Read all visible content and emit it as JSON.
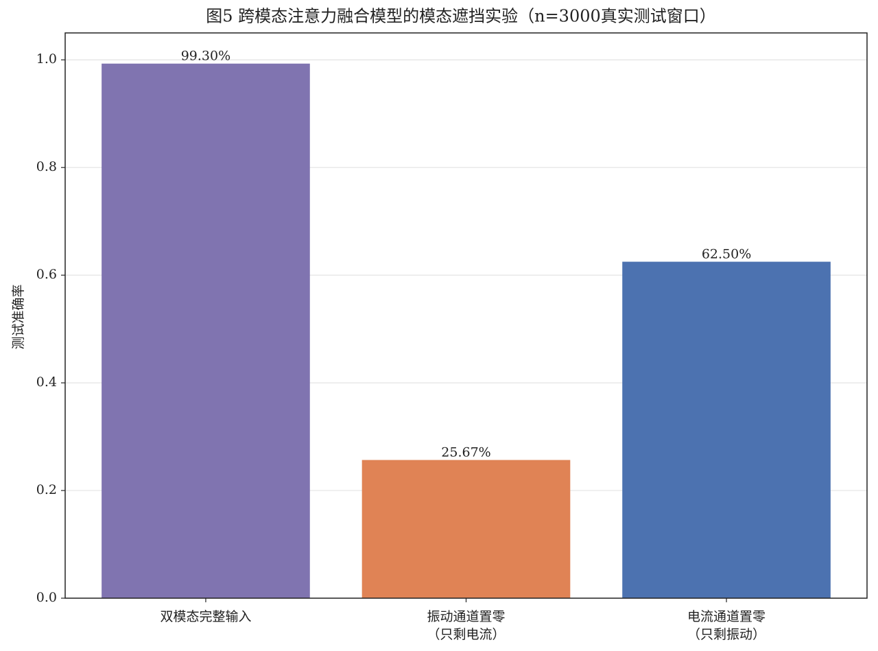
{
  "chart_data": {
    "type": "bar",
    "title": "图5 跨模态注意力融合模型的模态遮挡实验（n=3000真实测试窗口）",
    "y_label": "测试准确率",
    "categories": [
      "双模态完整输入",
      "振动通道置零\n（只剩电流）",
      "电流通道置零\n（只剩振动）"
    ],
    "values": [
      0.993,
      0.2567,
      0.625
    ],
    "value_labels": [
      "99.30%",
      "25.67%",
      "62.50%"
    ],
    "colors": [
      "#8074b0",
      "#e08355",
      "#4c72b0"
    ],
    "ylim": [
      0,
      1.05
    ],
    "yticks": [
      {
        "value": 0,
        "label": "0.0"
      },
      0.2,
      0.4,
      0.6,
      0.8,
      {
        "value": 1,
        "label": "1.0"
      }
    ],
    "grid": true
  }
}
